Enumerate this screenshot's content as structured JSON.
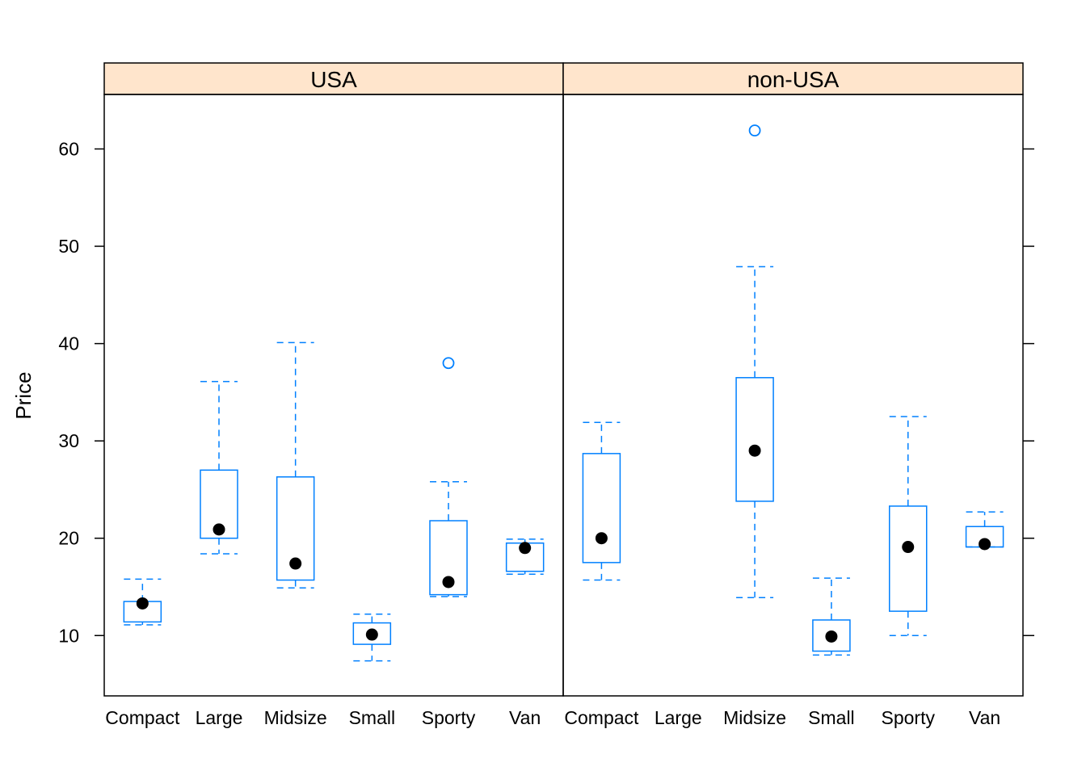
{
  "chart_data": {
    "type": "boxplot",
    "ylabel": "Price",
    "ylim": [
      3.8,
      65.6
    ],
    "yticks": [
      10,
      20,
      30,
      40,
      50,
      60
    ],
    "categories": [
      "Compact",
      "Large",
      "Midsize",
      "Small",
      "Sporty",
      "Van"
    ],
    "panels": [
      {
        "strip": "USA",
        "boxes": [
          {
            "category": "Compact",
            "whisker_low": 11.1,
            "q1": 11.4,
            "median": 13.3,
            "q3": 13.5,
            "whisker_high": 15.8,
            "outliers": []
          },
          {
            "category": "Large",
            "whisker_low": 18.4,
            "q1": 20.0,
            "median": 20.9,
            "q3": 27.0,
            "whisker_high": 36.1,
            "outliers": []
          },
          {
            "category": "Midsize",
            "whisker_low": 14.9,
            "q1": 15.7,
            "median": 17.4,
            "q3": 26.3,
            "whisker_high": 40.1,
            "outliers": []
          },
          {
            "category": "Small",
            "whisker_low": 7.4,
            "q1": 9.1,
            "median": 10.1,
            "q3": 11.3,
            "whisker_high": 12.2,
            "outliers": []
          },
          {
            "category": "Sporty",
            "whisker_low": 14.0,
            "q1": 14.2,
            "median": 15.5,
            "q3": 21.8,
            "whisker_high": 25.8,
            "outliers": [
              38.0
            ]
          },
          {
            "category": "Van",
            "whisker_low": 16.3,
            "q1": 16.6,
            "median": 19.0,
            "q3": 19.5,
            "whisker_high": 19.9,
            "outliers": []
          }
        ]
      },
      {
        "strip": "non-USA",
        "boxes": [
          {
            "category": "Compact",
            "whisker_low": 15.7,
            "q1": 17.5,
            "median": 20.0,
            "q3": 28.7,
            "whisker_high": 31.9,
            "outliers": []
          },
          {
            "category": "Large",
            "empty": true
          },
          {
            "category": "Midsize",
            "whisker_low": 13.9,
            "q1": 23.8,
            "median": 29.0,
            "q3": 36.5,
            "whisker_high": 47.9,
            "outliers": [
              61.9
            ]
          },
          {
            "category": "Small",
            "whisker_low": 8.0,
            "q1": 8.4,
            "median": 9.9,
            "q3": 11.6,
            "whisker_high": 15.9,
            "outliers": []
          },
          {
            "category": "Sporty",
            "whisker_low": 10.0,
            "q1": 12.5,
            "median": 19.1,
            "q3": 23.3,
            "whisker_high": 32.5,
            "outliers": []
          },
          {
            "category": "Van",
            "whisker_low": 19.1,
            "q1": 19.1,
            "median": 19.4,
            "q3": 21.2,
            "whisker_high": 22.7,
            "outliers": []
          }
        ]
      }
    ],
    "colors": {
      "box": "#0080ff",
      "median_dot": "#000000",
      "strip_bg": "#ffe5cc",
      "frame": "#000000"
    }
  }
}
